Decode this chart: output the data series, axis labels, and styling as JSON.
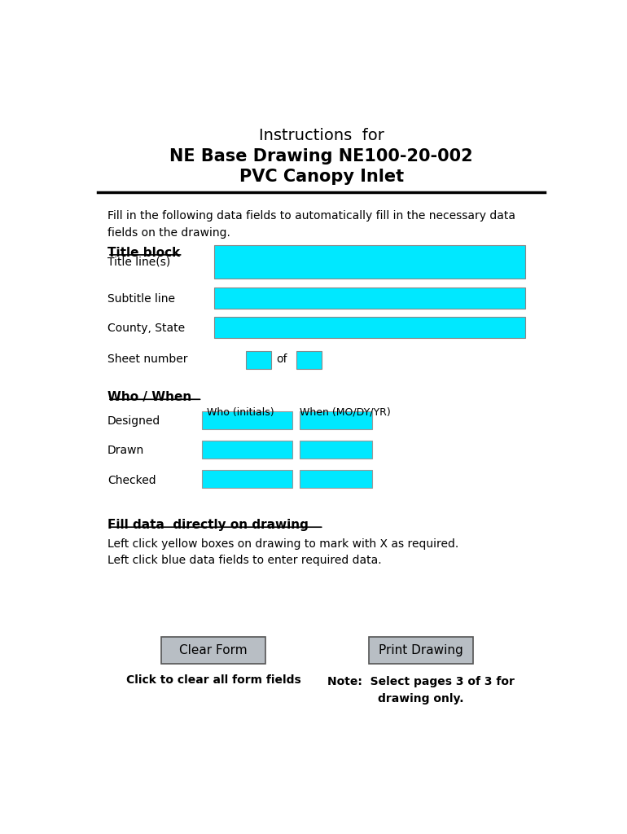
{
  "title_line1": "Instructions  for",
  "title_line2": "NE Base Drawing NE100-20-002",
  "title_line3": "PVC Canopy Inlet",
  "intro_text": "Fill in the following data fields to automatically fill in the necessary data\nfields on the drawing.",
  "section1_label": "Title block",
  "section2_label": "Who / When",
  "who_header": "Who (initials)",
  "when_header": "When (MO/DY/YR)",
  "section3_label": "Fill data  directly on drawing",
  "fill_text": "Left click yellow boxes on drawing to mark with X as required.\nLeft click blue data fields to enter required data.",
  "btn1_label": "Clear Form",
  "btn1_sublabel": "Click to clear all form fields",
  "btn2_label": "Print Drawing",
  "btn2_note": "Note:  Select pages 3 of 3 for\ndrawing only.",
  "cyan_color": "#00E8FF",
  "button_color": "#B8BEC4",
  "bg_color": "#FFFFFF",
  "text_color": "#000000"
}
